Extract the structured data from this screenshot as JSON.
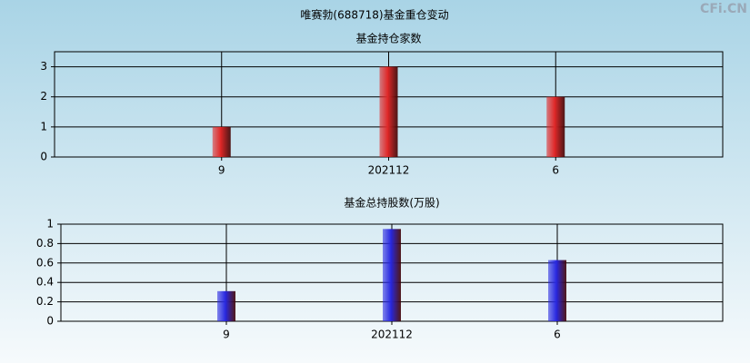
{
  "title": "唯赛勃(688718)基金重仓变动",
  "watermark": "CFi.CN",
  "chart_data": [
    {
      "type": "bar",
      "title": "基金持仓家数",
      "categories": [
        "9",
        "202112",
        "6"
      ],
      "values": [
        1,
        3,
        2
      ],
      "color": "#e02828",
      "ylim": [
        0,
        3.5
      ],
      "yticks": [
        0,
        1,
        2,
        3
      ],
      "grid": true
    },
    {
      "type": "bar",
      "title": "基金总持股数(万股)",
      "categories": [
        "9",
        "202112",
        "6"
      ],
      "values": [
        0.31,
        0.95,
        0.63
      ],
      "color": "#2828e0",
      "ylim": [
        0,
        1
      ],
      "yticks": [
        0,
        0.2,
        0.4,
        0.6,
        0.8,
        1
      ],
      "grid": true
    }
  ]
}
